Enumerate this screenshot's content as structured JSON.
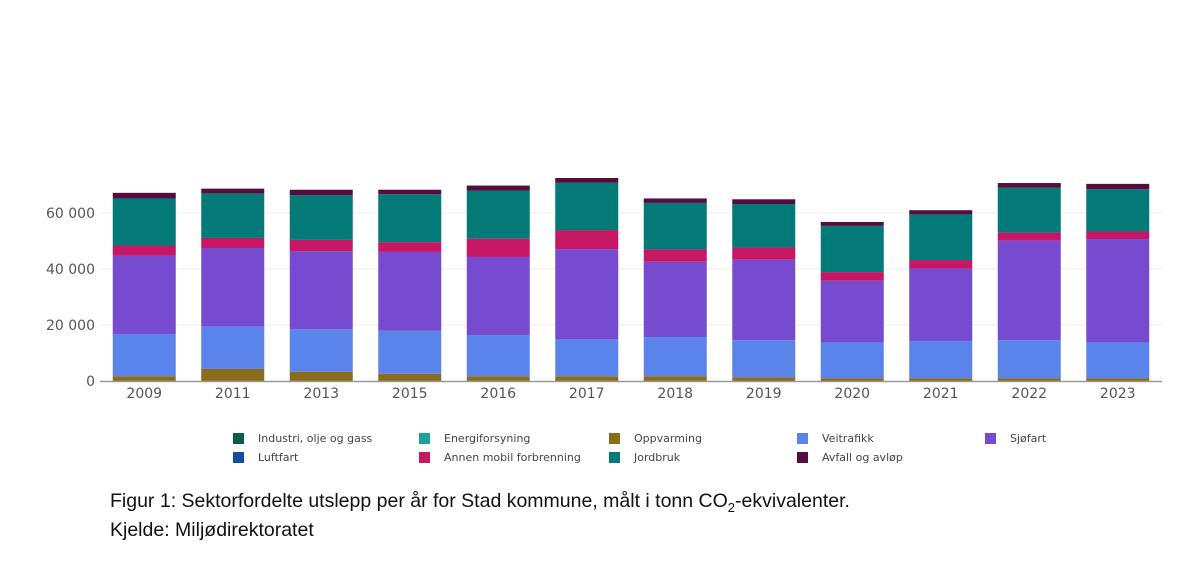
{
  "chart_data": {
    "type": "bar",
    "stacked": true,
    "categories": [
      "2009",
      "2011",
      "2013",
      "2015",
      "2016",
      "2017",
      "2018",
      "2019",
      "2020",
      "2021",
      "2022",
      "2023"
    ],
    "ylim": [
      0,
      75000
    ],
    "yticks": [
      0,
      20000,
      40000,
      60000
    ],
    "ytick_labels": [
      "0",
      "20 000",
      "40 000",
      "60 000"
    ],
    "grid": true,
    "legend_position": "bottom",
    "series": [
      {
        "name": "Industri, olje og gass",
        "color": "#0f5a4a",
        "values": [
          0,
          0,
          0,
          0,
          0,
          0,
          0,
          0,
          0,
          0,
          0,
          0
        ]
      },
      {
        "name": "Energiforsyning",
        "color": "#1aa39a",
        "values": [
          0,
          0,
          0,
          0,
          0,
          0,
          0,
          0,
          0,
          0,
          0,
          0
        ]
      },
      {
        "name": "Oppvarming",
        "color": "#8a6d1a",
        "values": [
          1700,
          4300,
          3300,
          2600,
          1700,
          1700,
          1700,
          1300,
          1000,
          1000,
          1000,
          1000
        ]
      },
      {
        "name": "Veitrafikk",
        "color": "#5b84ea",
        "values": [
          15100,
          15100,
          15200,
          15400,
          14600,
          13300,
          14000,
          13300,
          12700,
          13300,
          13600,
          12700
        ]
      },
      {
        "name": "Sjøfart",
        "color": "#764bcf",
        "values": [
          28000,
          28100,
          27900,
          28100,
          28000,
          32100,
          26900,
          28700,
          22100,
          25900,
          35500,
          37000
        ]
      },
      {
        "name": "Luftfart",
        "color": "#124f9e",
        "values": [
          0,
          0,
          0,
          0,
          0,
          0,
          0,
          0,
          0,
          0,
          0,
          0
        ]
      },
      {
        "name": "Annen mobil forbrenning",
        "color": "#c51763",
        "values": [
          3600,
          3600,
          4000,
          3500,
          6500,
          6800,
          4400,
          4400,
          3100,
          3000,
          2900,
          2700
        ]
      },
      {
        "name": "Jordbruk",
        "color": "#037a77",
        "values": [
          16800,
          15900,
          16000,
          17100,
          17200,
          16900,
          16600,
          15500,
          16500,
          16300,
          16000,
          15100
        ]
      },
      {
        "name": "Avfall og avløp",
        "color": "#560c3f",
        "values": [
          2000,
          1700,
          1900,
          1600,
          1800,
          1700,
          1600,
          1700,
          1400,
          1500,
          1700,
          1900
        ]
      }
    ]
  },
  "caption": {
    "line1_pre": "Figur 1: Sektorfordelte utslepp per år for Stad kommune, målt i tonn CO",
    "line1_sub": "2",
    "line1_post": "-ekvivalenter.",
    "line2": "Kjelde: Miljødirektoratet"
  }
}
